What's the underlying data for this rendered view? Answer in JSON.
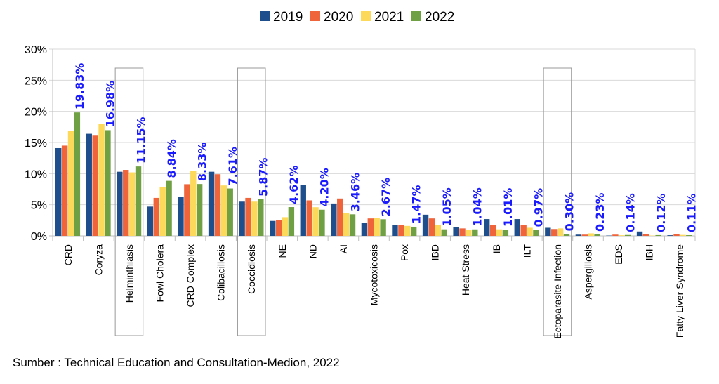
{
  "chart_data": {
    "type": "bar",
    "title": "",
    "xlabel": "",
    "ylabel": "",
    "ylim": [
      0,
      30
    ],
    "yticks": [
      "0%",
      "5%",
      "10%",
      "15%",
      "20%",
      "25%",
      "30%"
    ],
    "grid": true,
    "legend_position": "top",
    "categories": [
      "CRD",
      "Coryza",
      "Helminthiasis",
      "Fowl Cholera",
      "CRD Complex",
      "Colibacillosis",
      "Coccidiosis",
      "NE",
      "ND",
      "AI",
      "Mycotoxicosis",
      "Pox",
      "IBD",
      "Heat Stress",
      "IB",
      "ILT",
      "Ectoparasite Infection",
      "Aspergillosis",
      "EDS",
      "IBH",
      "Fatty Liver Syndrome"
    ],
    "highlighted_categories": [
      "Helminthiasis",
      "Coccidiosis",
      "Ectoparasite Infection"
    ],
    "series": [
      {
        "name": "2019",
        "color": "#1f4e8c",
        "values": [
          14.1,
          16.4,
          10.3,
          4.7,
          6.3,
          10.3,
          5.5,
          2.4,
          8.2,
          5.2,
          2.1,
          1.8,
          3.4,
          1.4,
          2.7,
          2.7,
          1.3,
          0.2,
          0.05,
          0.7,
          0.1
        ]
      },
      {
        "name": "2020",
        "color": "#f0643c",
        "values": [
          14.5,
          16.1,
          10.6,
          6.1,
          8.3,
          9.9,
          6.1,
          2.5,
          5.7,
          6.0,
          2.8,
          1.8,
          2.8,
          1.2,
          1.8,
          1.7,
          1.1,
          0.2,
          0.2,
          0.3,
          0.25
        ]
      },
      {
        "name": "2021",
        "color": "#fcd95a",
        "values": [
          16.9,
          18.0,
          10.2,
          7.9,
          10.4,
          8.1,
          5.5,
          3.0,
          4.6,
          3.7,
          2.9,
          1.6,
          1.8,
          0.9,
          1.05,
          1.3,
          1.2,
          0.4,
          0.1,
          0.05,
          0.15
        ]
      },
      {
        "name": "2022",
        "color": "#70a044",
        "values": [
          19.83,
          16.98,
          11.15,
          8.84,
          8.33,
          7.61,
          5.87,
          4.62,
          4.2,
          3.46,
          2.67,
          1.47,
          1.05,
          1.04,
          1.01,
          0.97,
          0.3,
          0.23,
          0.14,
          0.12,
          0.11
        ]
      }
    ],
    "data_labels": [
      "19.83%",
      "16.98%",
      "11.15%",
      "8.84%",
      "8.33%",
      "7.61%",
      "5.87%",
      "4.62%",
      "4.20%",
      "3.46%",
      "2.67%",
      "1.47%",
      "1.05%",
      "1.04%",
      "1.01%",
      "0.97%",
      "0.30%",
      "0.23%",
      "0.14%",
      "0.12%",
      "0.11%"
    ],
    "data_label_color": "#1a1aff"
  },
  "source": "Sumber : Technical Education and Consultation-Medion, 2022"
}
